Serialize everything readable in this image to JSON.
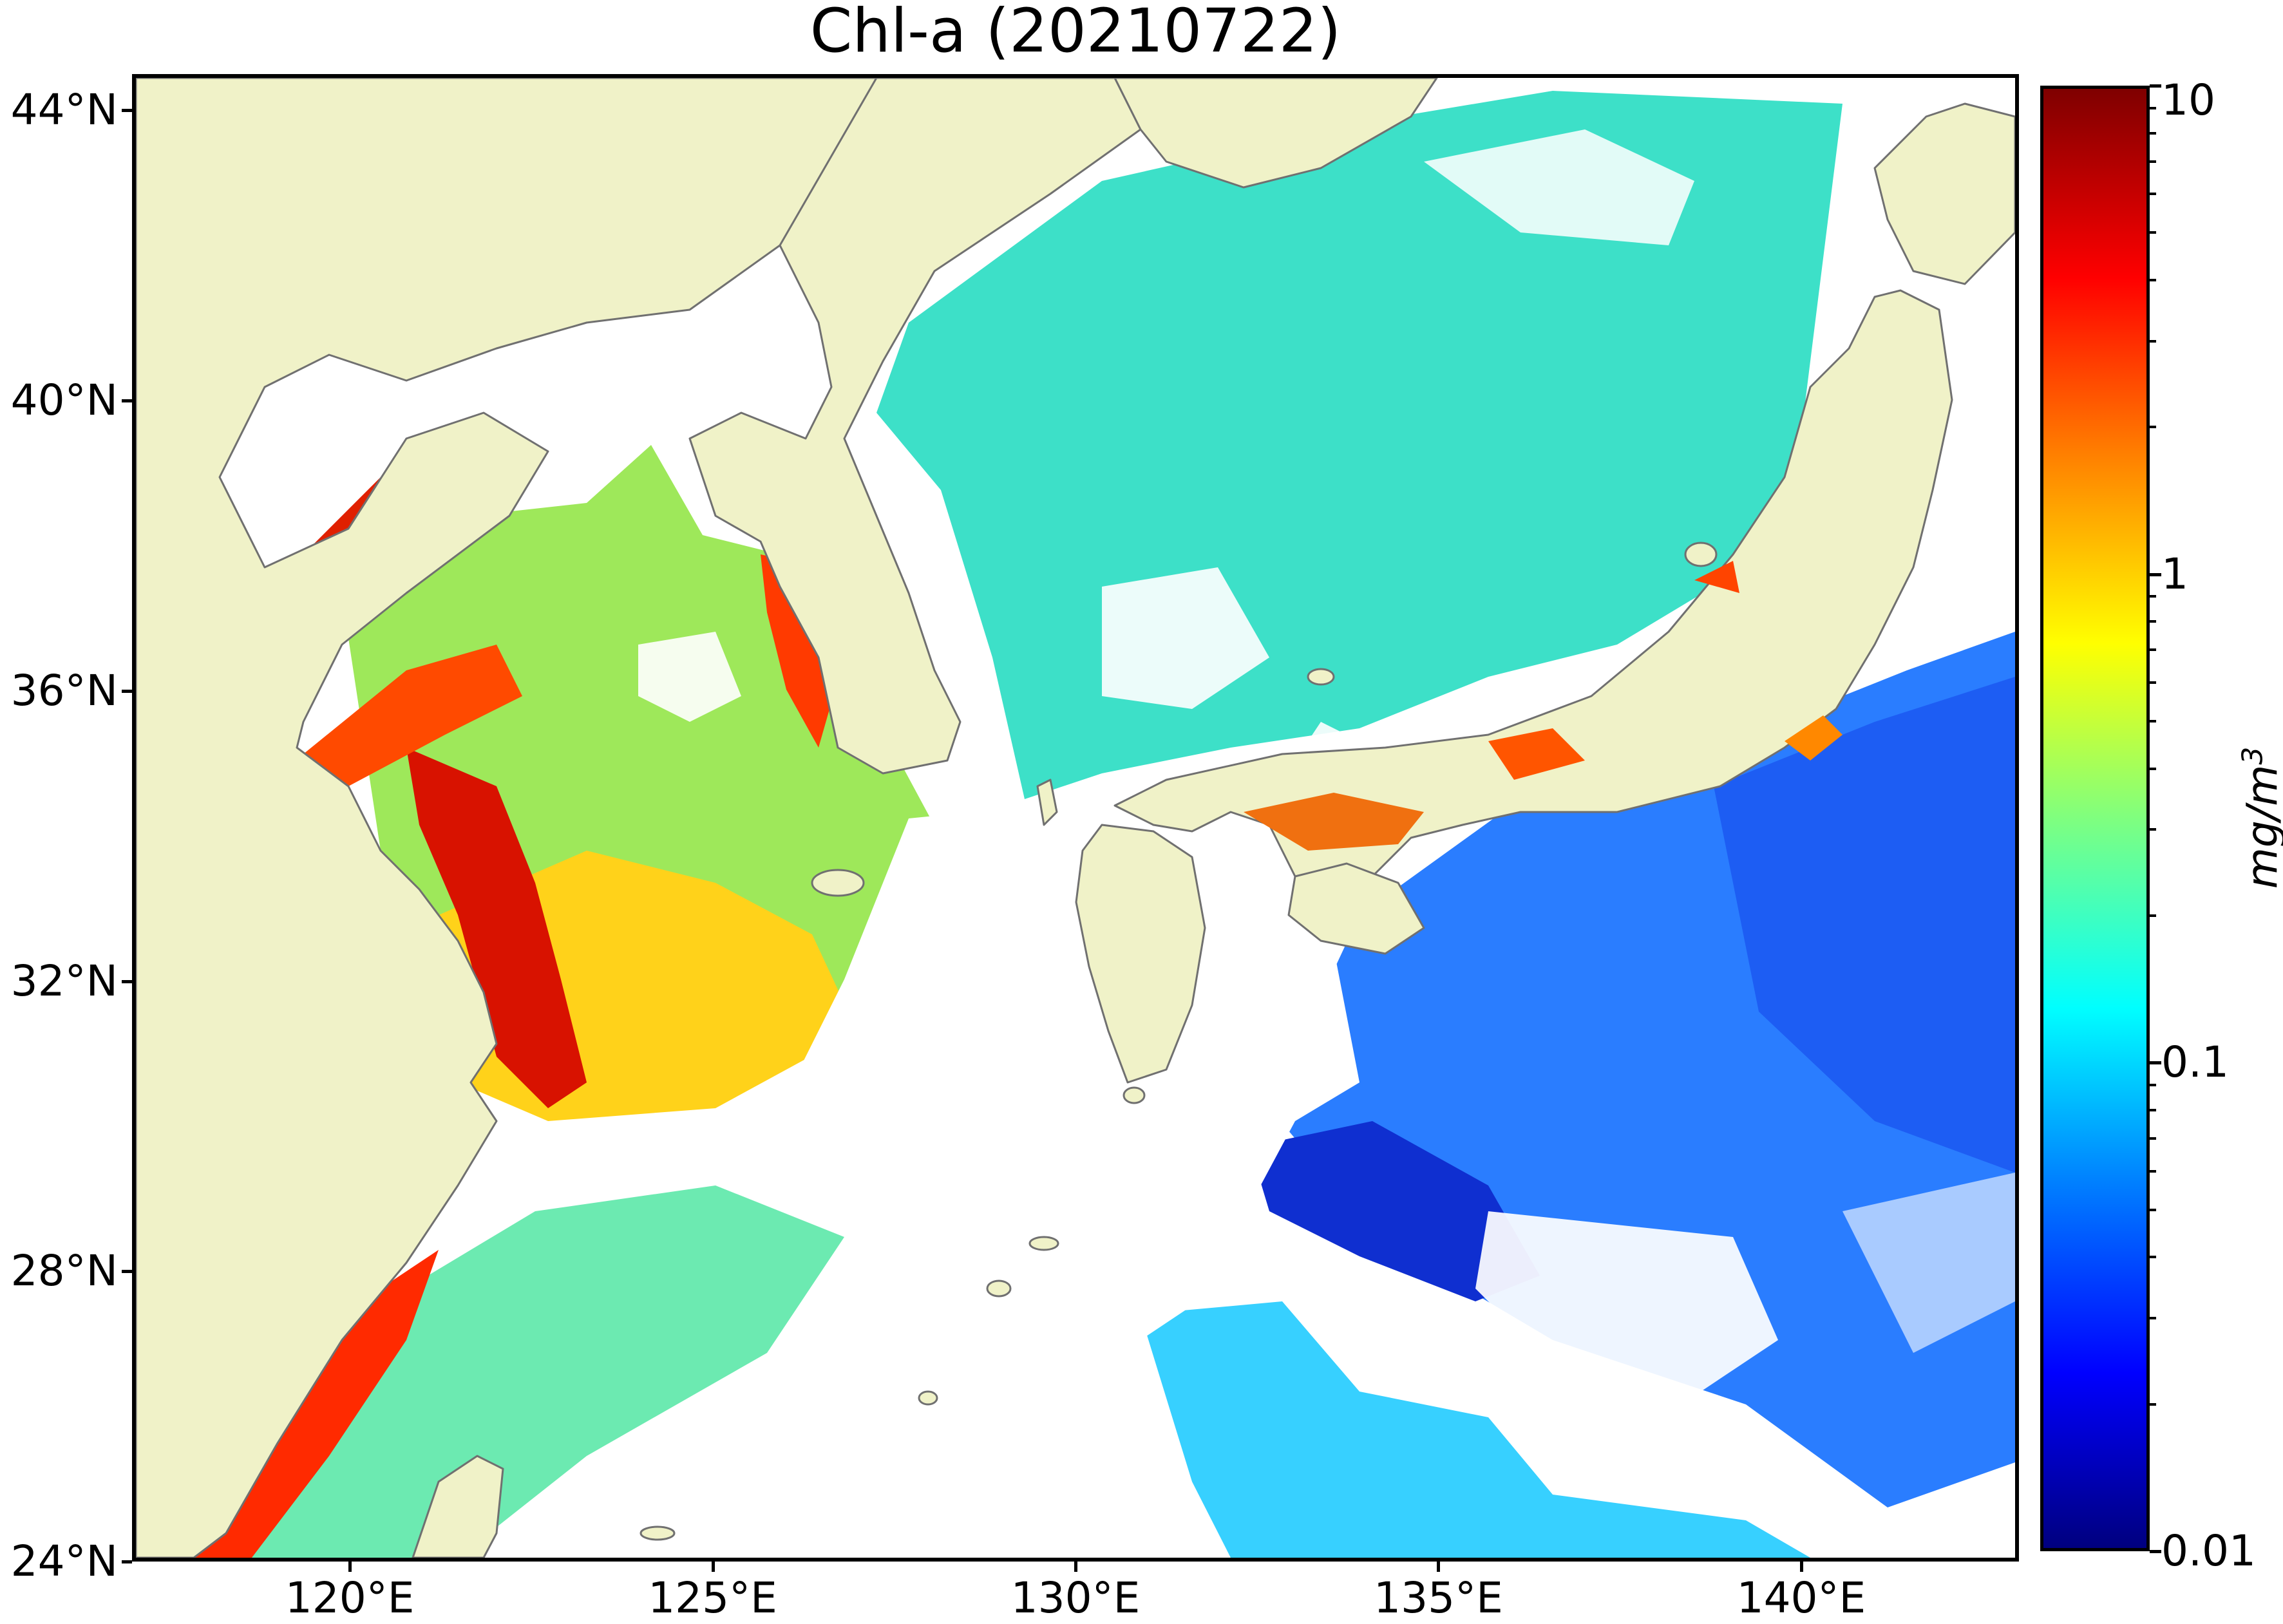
{
  "title": "Chl-a (20210722)",
  "colors": {
    "land": "#f0f2c8",
    "no_data": "#ffffff",
    "coastline": "#707070",
    "colormap": "jet"
  },
  "map_extent": {
    "lon_min": 117,
    "lon_max": 143,
    "lat_min": 24,
    "lat_max": 44.5
  },
  "lat_axis": [
    {
      "value": 44,
      "label": "44°N"
    },
    {
      "value": 40,
      "label": "40°N"
    },
    {
      "value": 36,
      "label": "36°N"
    },
    {
      "value": 32,
      "label": "32°N"
    },
    {
      "value": 28,
      "label": "28°N"
    },
    {
      "value": 24,
      "label": "24°N"
    }
  ],
  "lon_axis": [
    {
      "value": 120,
      "label": "120°E"
    },
    {
      "value": 125,
      "label": "125°E"
    },
    {
      "value": 130,
      "label": "130°E"
    },
    {
      "value": 135,
      "label": "135°E"
    },
    {
      "value": 140,
      "label": "140°E"
    }
  ],
  "colorbar": {
    "scale": "log",
    "min": 0.01,
    "max": 10,
    "ticks": [
      {
        "value": 10,
        "label": "10"
      },
      {
        "value": 1,
        "label": "1"
      },
      {
        "value": 0.1,
        "label": "0.1"
      },
      {
        "value": 0.01,
        "label": "0.01"
      }
    ],
    "units": "mg/m",
    "units_exponent": "3"
  }
}
